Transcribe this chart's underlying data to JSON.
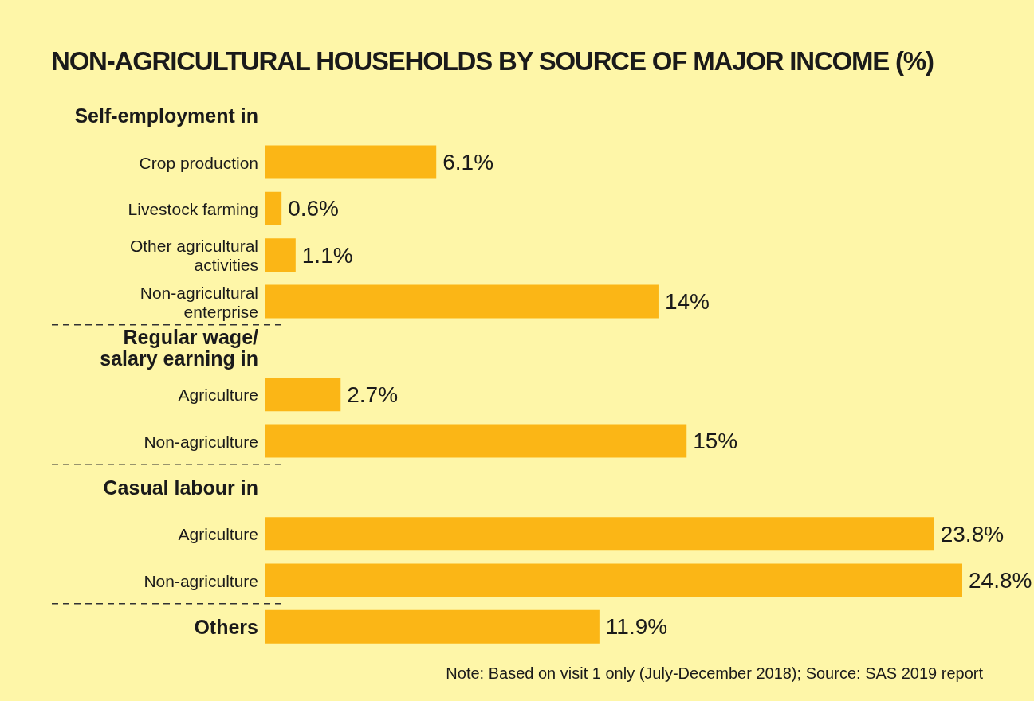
{
  "chart_data": {
    "type": "bar",
    "orientation": "horizontal",
    "title": "NON-AGRICULTURAL HOUSEHOLDS BY SOURCE OF MAJOR INCOME (%)",
    "categories": [
      "Self-employment in",
      "Crop production",
      "Livestock farming",
      "Other agricultural activities",
      "Non-agricultural enterprise",
      "Regular wage/ salary earning in",
      "Agriculture",
      "Non-agriculture",
      "Casual labour in",
      "Agriculture",
      "Non-agriculture",
      "Others"
    ],
    "values": [
      null,
      6.1,
      0.6,
      1.1,
      14,
      null,
      2.7,
      15,
      null,
      23.8,
      24.8,
      11.9
    ],
    "value_labels": [
      null,
      "6.1%",
      "0.6%",
      "1.1%",
      "14%",
      null,
      "2.7%",
      "15%",
      null,
      "23.8%",
      "24.8%",
      "11.9%"
    ],
    "color": "#fbb616",
    "annotations": [
      "Note: Based on visit 1 only (July-December 2018); Source: SAS 2019 report"
    ]
  }
}
